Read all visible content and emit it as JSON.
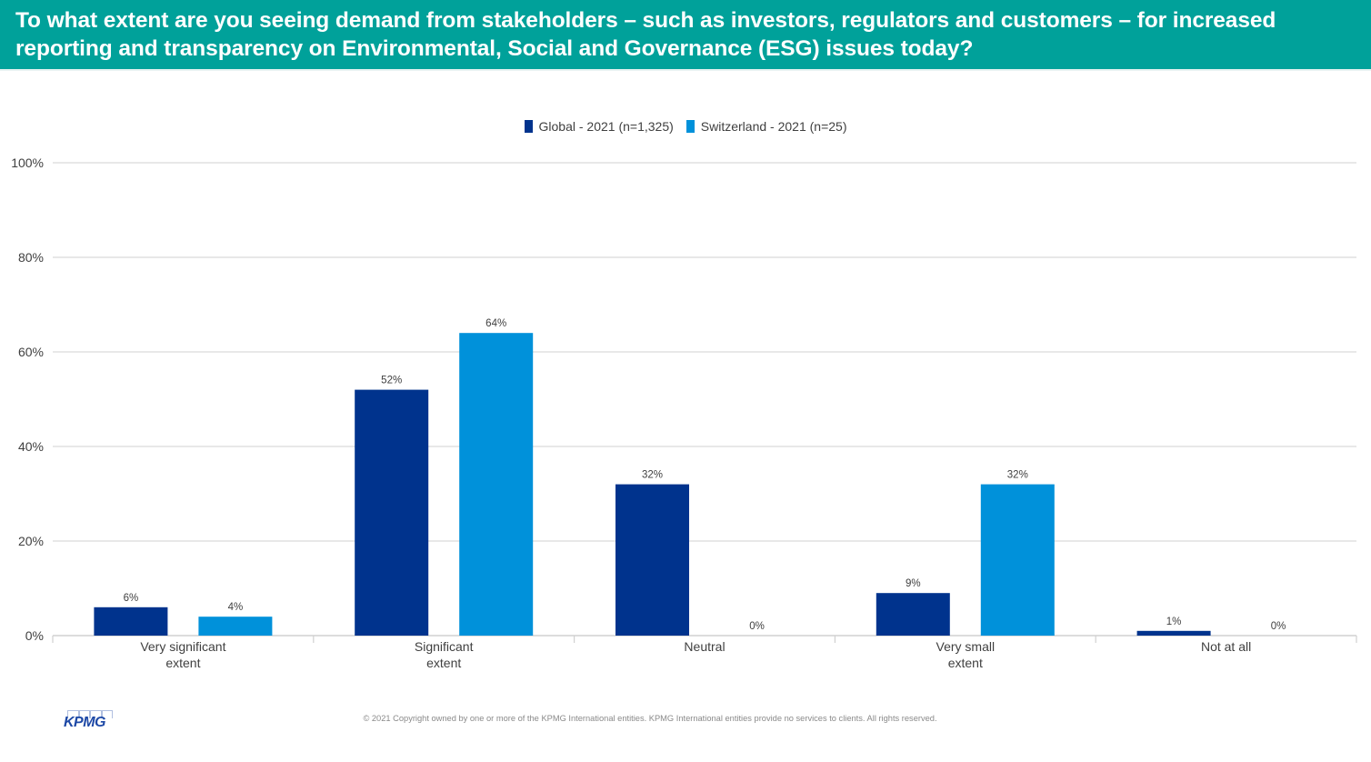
{
  "header": {
    "title": "To what extent are you seeing demand from stakeholders – such as investors, regulators and customers – for increased reporting and transparency on Environmental, Social and Governance (ESG) issues today?"
  },
  "colors": {
    "header_bg": "#00a19a",
    "global": "#00338d",
    "switzerland": "#0091da"
  },
  "chart_data": {
    "type": "bar",
    "title": "To what extent are you seeing demand from stakeholders – such as investors, regulators and customers – for increased reporting and transparency on Environmental, Social and Governance (ESG) issues today?",
    "categories": [
      [
        "Very significant",
        "extent"
      ],
      [
        "Significant",
        "extent"
      ],
      [
        "Neutral"
      ],
      [
        "Very small",
        "extent"
      ],
      [
        "Not at all"
      ]
    ],
    "series": [
      {
        "name": "Global - 2021 (n=1,325)",
        "color": "#00338d",
        "values": [
          6,
          52,
          32,
          9,
          1
        ],
        "labels": [
          "6%",
          "52%",
          "32%",
          "9%",
          "1%"
        ]
      },
      {
        "name": "Switzerland - 2021 (n=25)",
        "color": "#0091da",
        "values": [
          4,
          64,
          0,
          32,
          0
        ],
        "labels": [
          "4%",
          "64%",
          "0%",
          "32%",
          "0%"
        ]
      }
    ],
    "yticks": [
      "0%",
      "20%",
      "40%",
      "60%",
      "80%",
      "100%"
    ],
    "ytick_values": [
      0,
      20,
      40,
      60,
      80,
      100
    ],
    "ylim": [
      0,
      100
    ],
    "xlabel": "",
    "ylabel": "",
    "grid": true,
    "legend_position": "top-center"
  },
  "legend": {
    "items": [
      {
        "label": "Global - 2021 (n=1,325)"
      },
      {
        "label": "Switzerland - 2021 (n=25)"
      }
    ]
  },
  "footer": {
    "logo_text": "KPMG",
    "copyright": "© 2021 Copyright owned by one or more of the KPMG International entities. KPMG International entities provide no services to clients. All rights reserved."
  }
}
